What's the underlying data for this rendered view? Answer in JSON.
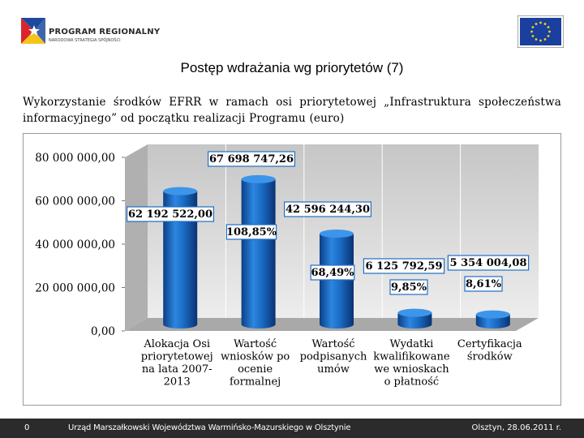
{
  "header": {
    "logo_title": "PROGRAM REGIONALNY",
    "logo_subtitle": "NARODOWA STRATEGIA SPÓJNOŚCI"
  },
  "slide": {
    "title": "Postęp wdrażania wg priorytetów (7)",
    "subtitle": "Wykorzystanie środków EFRR w ramach osi priorytetowej „Infrastruktura społeczeństwa informacyjnego” od początku realizacji Programu (euro)"
  },
  "chart_data": {
    "type": "bar",
    "categories": [
      [
        "Alokacja Osi",
        "priorytetowej",
        "na lata 2007-",
        "2013"
      ],
      [
        "Wartość",
        "wniosków po",
        "ocenie",
        "formalnej"
      ],
      [
        "Wartość",
        "podpisanych",
        "umów"
      ],
      [
        "Wydatki",
        "kwalifikowane",
        "we wnioskach",
        "o płatność"
      ],
      [
        "Certyfikacja",
        "środków"
      ]
    ],
    "values": [
      62192522.0,
      67698747.26,
      42596244.3,
      6125792.59,
      5354004.08
    ],
    "value_labels": [
      "62 192 522,00",
      "67 698 747,26",
      "42 596 244,30",
      "6 125 792,59",
      "5 354 004,08"
    ],
    "percent_labels": [
      "",
      "108,85%",
      "68,49%",
      "9,85%",
      "8,61%"
    ],
    "y_ticks": [
      "0,00",
      "20 000 000,00",
      "40 000 000,00",
      "60 000 000,00",
      "80 000 000,00"
    ],
    "ylim": [
      0,
      80000000
    ],
    "bar_color": "#1f6fc4",
    "grid": true,
    "legend": "none"
  },
  "footer": {
    "page": "0",
    "organization": "Urząd Marszałkowski Województwa Warmińsko-Mazurskiego w Olsztynie",
    "date": "Olsztyn, 28.06.2011 r."
  }
}
